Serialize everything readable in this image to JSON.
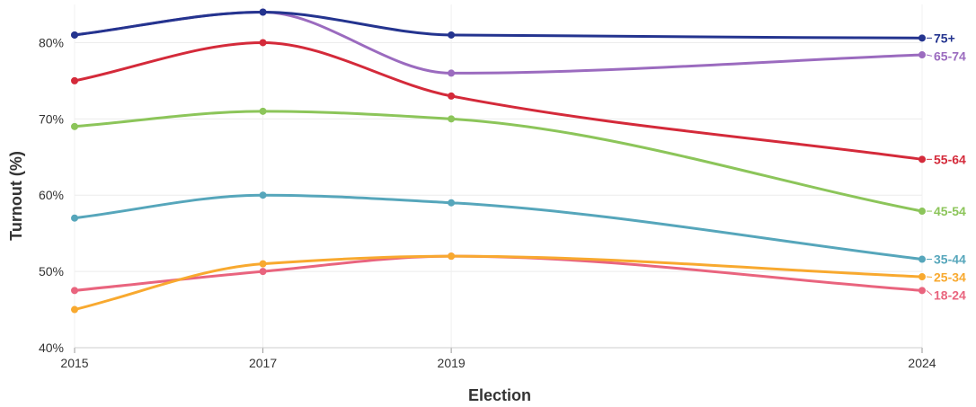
{
  "chart_data": {
    "type": "line",
    "xlabel": "Election",
    "ylabel": "Turnout (%)",
    "x": [
      2015,
      2017,
      2019,
      2024
    ],
    "x_tick_labels": [
      "2015",
      "2017",
      "2019",
      "2024"
    ],
    "ylim": [
      40,
      85
    ],
    "y_ticks": [
      40,
      50,
      60,
      70,
      80
    ],
    "y_tick_labels": [
      "40%",
      "50%",
      "60%",
      "70%",
      "80%"
    ],
    "grid": true,
    "legend": "direct labels at line ends (right)",
    "series": [
      {
        "name": "75+",
        "color": "#24348f",
        "values": [
          81,
          84,
          81,
          80.6
        ]
      },
      {
        "name": "65-74",
        "color": "#9b6bbf",
        "values": [
          81,
          84,
          76,
          78.4
        ]
      },
      {
        "name": "55-64",
        "color": "#d42a3a",
        "values": [
          75,
          80,
          73,
          64.7
        ]
      },
      {
        "name": "45-54",
        "color": "#8cc55a",
        "values": [
          69,
          71,
          70,
          57.9
        ]
      },
      {
        "name": "35-44",
        "color": "#56a6bb",
        "values": [
          57,
          60,
          59,
          51.6
        ]
      },
      {
        "name": "25-34",
        "color": "#f8a92f",
        "values": [
          45,
          51,
          52,
          49.3
        ]
      },
      {
        "name": "18-24",
        "color": "#e9647e",
        "values": [
          47.5,
          50,
          52,
          47.5
        ]
      }
    ]
  }
}
